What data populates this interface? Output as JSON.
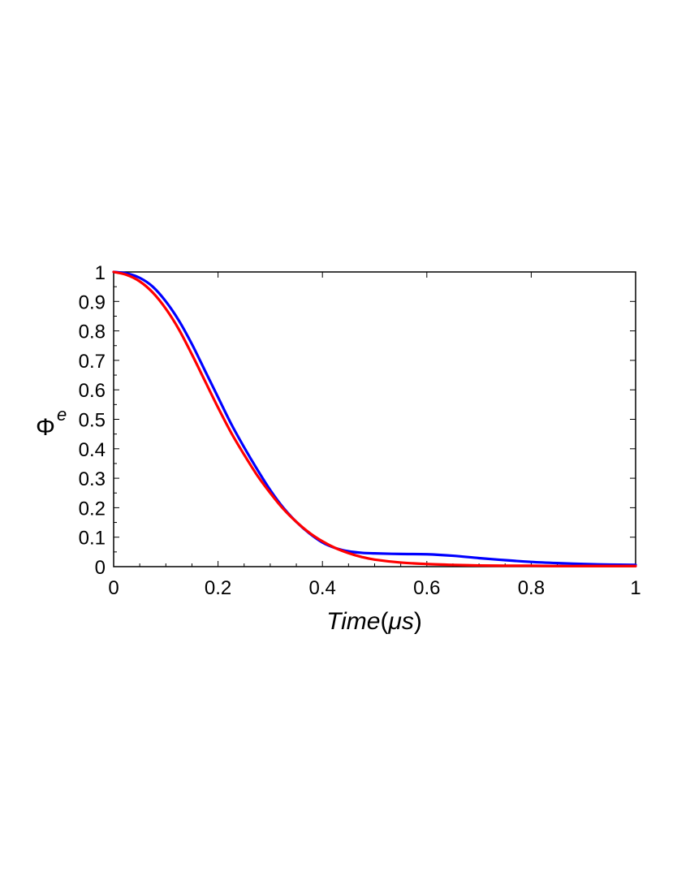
{
  "chart_data": {
    "type": "line",
    "xlabel": "Time",
    "xlabel_unit": "μs",
    "ylabel": "Φ",
    "ylabel_superscript": "e",
    "xlim": [
      0,
      1
    ],
    "ylim": [
      0,
      1
    ],
    "x_ticks": [
      0,
      0.2,
      0.4,
      0.6,
      0.8,
      1
    ],
    "x_tick_labels": [
      "0",
      "0.2",
      "0.4",
      "0.6",
      "0.8",
      "1"
    ],
    "y_ticks": [
      0,
      0.1,
      0.2,
      0.3,
      0.4,
      0.5,
      0.6,
      0.7,
      0.8,
      0.9,
      1
    ],
    "y_tick_labels": [
      "0",
      "0.1",
      "0.2",
      "0.3",
      "0.4",
      "0.5",
      "0.6",
      "0.7",
      "0.8",
      "0.9",
      "1"
    ],
    "grid": false,
    "legend": "none",
    "series": [
      {
        "color": "#0000ff",
        "x": [
          0,
          0.025,
          0.05,
          0.075,
          0.1,
          0.125,
          0.15,
          0.175,
          0.2,
          0.225,
          0.25,
          0.275,
          0.3,
          0.325,
          0.35,
          0.375,
          0.4,
          0.425,
          0.45,
          0.475,
          0.5,
          0.55,
          0.6,
          0.65,
          0.7,
          0.75,
          0.8,
          0.85,
          0.9,
          0.95,
          1.0
        ],
        "y": [
          1.0,
          0.995,
          0.98,
          0.95,
          0.9,
          0.835,
          0.755,
          0.665,
          0.575,
          0.485,
          0.405,
          0.33,
          0.26,
          0.2,
          0.152,
          0.113,
          0.082,
          0.063,
          0.052,
          0.047,
          0.045,
          0.043,
          0.042,
          0.037,
          0.029,
          0.022,
          0.016,
          0.012,
          0.009,
          0.007,
          0.006
        ]
      },
      {
        "color": "#ff0000",
        "x": [
          0,
          0.025,
          0.05,
          0.075,
          0.1,
          0.125,
          0.15,
          0.175,
          0.2,
          0.225,
          0.25,
          0.275,
          0.3,
          0.325,
          0.35,
          0.375,
          0.4,
          0.425,
          0.45,
          0.475,
          0.5,
          0.55,
          0.6,
          0.65,
          0.7,
          0.75,
          0.8,
          0.85,
          0.9,
          0.95,
          1.0
        ],
        "y": [
          1.0,
          0.99,
          0.968,
          0.93,
          0.875,
          0.805,
          0.72,
          0.63,
          0.54,
          0.455,
          0.38,
          0.31,
          0.25,
          0.196,
          0.152,
          0.115,
          0.086,
          0.063,
          0.046,
          0.033,
          0.024,
          0.014,
          0.009,
          0.006,
          0.004,
          0.003,
          0.003,
          0.002,
          0.002,
          0.002,
          0.002
        ]
      }
    ]
  }
}
